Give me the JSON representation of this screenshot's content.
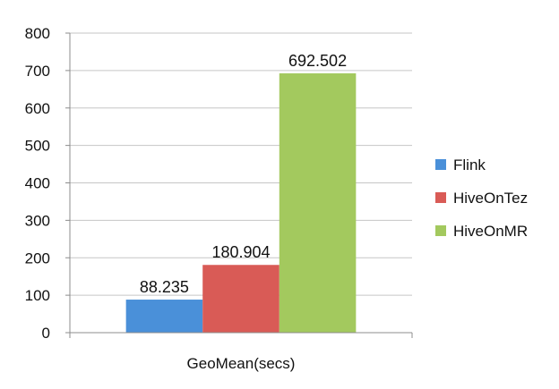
{
  "chart_data": {
    "type": "bar",
    "categories": [
      "GeoMean(secs)"
    ],
    "series": [
      {
        "name": "Flink",
        "values": [
          88.235
        ],
        "label": "88.235",
        "color": "#4a90d9"
      },
      {
        "name": "HiveOnTez",
        "values": [
          180.904
        ],
        "label": "180.904",
        "color": "#d95b56"
      },
      {
        "name": "HiveOnMR",
        "values": [
          692.502
        ],
        "label": "692.502",
        "color": "#a3c95e"
      }
    ],
    "yticks": [
      "0",
      "100",
      "200",
      "300",
      "400",
      "500",
      "600",
      "700",
      "800"
    ],
    "ylim": [
      0,
      800
    ],
    "grid": true,
    "legend": "right"
  }
}
